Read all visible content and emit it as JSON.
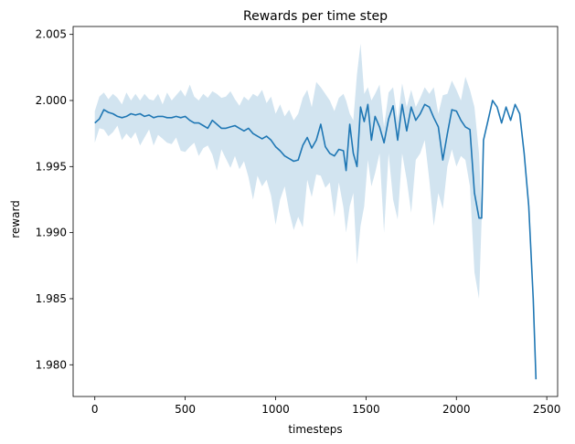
{
  "chart_data": {
    "type": "line",
    "title": "Rewards per time step",
    "xlabel": "timesteps",
    "ylabel": "reward",
    "xlim": [
      -120,
      2560
    ],
    "ylim": [
      1.9776,
      2.0056
    ],
    "xticks": [
      0,
      500,
      1000,
      1500,
      2000,
      2500
    ],
    "xtick_labels": [
      "0",
      "500",
      "1000",
      "1500",
      "2000",
      "2500"
    ],
    "yticks": [
      1.98,
      1.985,
      1.99,
      1.995,
      2.0,
      2.005
    ],
    "ytick_labels": [
      "1.980",
      "1.985",
      "1.990",
      "1.995",
      "2.000",
      "2.005"
    ],
    "grid": false,
    "line_color": "#1f77b4",
    "band_color": "#1f77b4",
    "series": [
      {
        "values": [
          [
            0,
            1.9983
          ],
          [
            25,
            1.9986
          ],
          [
            50,
            1.9993
          ],
          [
            75,
            1.9991
          ],
          [
            100,
            1.999
          ],
          [
            125,
            1.9988
          ],
          [
            150,
            1.9987
          ],
          [
            175,
            1.9988
          ],
          [
            200,
            1.999
          ],
          [
            225,
            1.9989
          ],
          [
            250,
            1.999
          ],
          [
            275,
            1.9988
          ],
          [
            300,
            1.9989
          ],
          [
            325,
            1.9987
          ],
          [
            350,
            1.9988
          ],
          [
            375,
            1.9988
          ],
          [
            400,
            1.9987
          ],
          [
            425,
            1.9987
          ],
          [
            450,
            1.9988
          ],
          [
            475,
            1.9987
          ],
          [
            500,
            1.9988
          ],
          [
            525,
            1.9985
          ],
          [
            550,
            1.9983
          ],
          [
            575,
            1.9983
          ],
          [
            600,
            1.9981
          ],
          [
            625,
            1.9979
          ],
          [
            650,
            1.9985
          ],
          [
            675,
            1.9982
          ],
          [
            700,
            1.9979
          ],
          [
            725,
            1.9979
          ],
          [
            750,
            1.998
          ],
          [
            775,
            1.9981
          ],
          [
            800,
            1.9979
          ],
          [
            825,
            1.9977
          ],
          [
            850,
            1.9979
          ],
          [
            875,
            1.9975
          ],
          [
            900,
            1.9973
          ],
          [
            925,
            1.9971
          ],
          [
            950,
            1.9973
          ],
          [
            975,
            1.997
          ],
          [
            1000,
            1.9965
          ],
          [
            1025,
            1.9962
          ],
          [
            1050,
            1.9958
          ],
          [
            1075,
            1.9956
          ],
          [
            1100,
            1.9954
          ],
          [
            1125,
            1.9955
          ],
          [
            1150,
            1.9966
          ],
          [
            1175,
            1.9972
          ],
          [
            1200,
            1.9964
          ],
          [
            1225,
            1.997
          ],
          [
            1250,
            1.9982
          ],
          [
            1275,
            1.9965
          ],
          [
            1300,
            1.996
          ],
          [
            1325,
            1.9958
          ],
          [
            1350,
            1.9963
          ],
          [
            1375,
            1.9962
          ],
          [
            1390,
            1.9947
          ],
          [
            1410,
            1.9982
          ],
          [
            1430,
            1.996
          ],
          [
            1450,
            1.995
          ],
          [
            1470,
            1.9995
          ],
          [
            1490,
            1.9984
          ],
          [
            1510,
            1.9997
          ],
          [
            1530,
            1.997
          ],
          [
            1550,
            1.9988
          ],
          [
            1575,
            1.998
          ],
          [
            1600,
            1.9968
          ],
          [
            1625,
            1.9986
          ],
          [
            1650,
            1.9996
          ],
          [
            1675,
            1.997
          ],
          [
            1700,
            1.9997
          ],
          [
            1725,
            1.9977
          ],
          [
            1750,
            1.9995
          ],
          [
            1775,
            1.9985
          ],
          [
            1800,
            1.999
          ],
          [
            1825,
            1.9997
          ],
          [
            1850,
            1.9995
          ],
          [
            1875,
            1.9987
          ],
          [
            1900,
            1.998
          ],
          [
            1925,
            1.9955
          ],
          [
            1950,
            1.9975
          ],
          [
            1975,
            1.9993
          ],
          [
            2000,
            1.9992
          ],
          [
            2025,
            1.9985
          ],
          [
            2050,
            1.998
          ],
          [
            2075,
            1.9978
          ],
          [
            2100,
            1.993
          ],
          [
            2125,
            1.9911
          ],
          [
            2140,
            1.9911
          ],
          [
            2150,
            1.997
          ],
          [
            2175,
            1.9985
          ],
          [
            2200,
            2.0
          ],
          [
            2225,
            1.9995
          ],
          [
            2250,
            1.9983
          ],
          [
            2275,
            1.9995
          ],
          [
            2300,
            1.9985
          ],
          [
            2325,
            1.9997
          ],
          [
            2350,
            1.999
          ],
          [
            2375,
            1.996
          ],
          [
            2400,
            1.992
          ],
          [
            2425,
            1.985
          ],
          [
            2440,
            1.9789
          ]
        ],
        "lower": [
          [
            0,
            1.9968
          ],
          [
            25,
            1.9979
          ],
          [
            50,
            1.9978
          ],
          [
            75,
            1.9973
          ],
          [
            100,
            1.9976
          ],
          [
            125,
            1.9981
          ],
          [
            150,
            1.997
          ],
          [
            175,
            1.9975
          ],
          [
            200,
            1.9971
          ],
          [
            225,
            1.9976
          ],
          [
            250,
            1.9966
          ],
          [
            275,
            1.9972
          ],
          [
            300,
            1.9978
          ],
          [
            325,
            1.9966
          ],
          [
            350,
            1.9974
          ],
          [
            375,
            1.9971
          ],
          [
            400,
            1.9968
          ],
          [
            425,
            1.9967
          ],
          [
            450,
            1.9972
          ],
          [
            475,
            1.9962
          ],
          [
            500,
            1.9961
          ],
          [
            525,
            1.9965
          ],
          [
            550,
            1.9968
          ],
          [
            575,
            1.9958
          ],
          [
            600,
            1.9964
          ],
          [
            625,
            1.9966
          ],
          [
            650,
            1.9959
          ],
          [
            675,
            1.9947
          ],
          [
            700,
            1.9963
          ],
          [
            725,
            1.9956
          ],
          [
            750,
            1.9949
          ],
          [
            775,
            1.9958
          ],
          [
            800,
            1.9948
          ],
          [
            825,
            1.9954
          ],
          [
            850,
            1.9942
          ],
          [
            875,
            1.9925
          ],
          [
            900,
            1.9943
          ],
          [
            925,
            1.9935
          ],
          [
            950,
            1.994
          ],
          [
            975,
            1.9928
          ],
          [
            1000,
            1.9906
          ],
          [
            1025,
            1.9925
          ],
          [
            1050,
            1.9935
          ],
          [
            1075,
            1.9916
          ],
          [
            1100,
            1.9902
          ],
          [
            1125,
            1.9912
          ],
          [
            1150,
            1.9904
          ],
          [
            1175,
            1.994
          ],
          [
            1200,
            1.9927
          ],
          [
            1225,
            1.9944
          ],
          [
            1250,
            1.9943
          ],
          [
            1275,
            1.9934
          ],
          [
            1300,
            1.9938
          ],
          [
            1325,
            1.9912
          ],
          [
            1350,
            1.9938
          ],
          [
            1375,
            1.9919
          ],
          [
            1390,
            1.99
          ],
          [
            1410,
            1.992
          ],
          [
            1430,
            1.993
          ],
          [
            1450,
            1.9876
          ],
          [
            1470,
            1.9905
          ],
          [
            1490,
            1.992
          ],
          [
            1510,
            1.9955
          ],
          [
            1530,
            1.9935
          ],
          [
            1550,
            1.9945
          ],
          [
            1575,
            1.996
          ],
          [
            1600,
            1.99
          ],
          [
            1625,
            1.996
          ],
          [
            1650,
            1.9925
          ],
          [
            1675,
            1.991
          ],
          [
            1700,
            1.996
          ],
          [
            1725,
            1.994
          ],
          [
            1750,
            1.9915
          ],
          [
            1775,
            1.9955
          ],
          [
            1800,
            1.996
          ],
          [
            1825,
            1.997
          ],
          [
            1850,
            1.994
          ],
          [
            1875,
            1.9905
          ],
          [
            1900,
            1.993
          ],
          [
            1925,
            1.9918
          ],
          [
            1950,
            1.995
          ],
          [
            1975,
            1.9963
          ],
          [
            2000,
            1.995
          ],
          [
            2025,
            1.9958
          ],
          [
            2050,
            1.9955
          ],
          [
            2075,
            1.9935
          ],
          [
            2100,
            1.987
          ],
          [
            2125,
            1.985
          ],
          [
            2140,
            1.991
          ]
        ],
        "upper": [
          [
            0,
            1.9992
          ],
          [
            25,
            2.0003
          ],
          [
            50,
            2.0006
          ],
          [
            75,
            2.0001
          ],
          [
            100,
            2.0005
          ],
          [
            125,
            2.0002
          ],
          [
            150,
            1.9997
          ],
          [
            175,
            2.0006
          ],
          [
            200,
            2.0
          ],
          [
            225,
            2.0005
          ],
          [
            250,
            2.0
          ],
          [
            275,
            2.0005
          ],
          [
            300,
            2.0001
          ],
          [
            325,
            2.0
          ],
          [
            350,
            2.0005
          ],
          [
            375,
            1.9997
          ],
          [
            400,
            2.0006
          ],
          [
            425,
            2.0
          ],
          [
            450,
            2.0004
          ],
          [
            475,
            2.0008
          ],
          [
            500,
            2.0003
          ],
          [
            525,
            2.0012
          ],
          [
            550,
            2.0003
          ],
          [
            575,
            2.0
          ],
          [
            600,
            2.0005
          ],
          [
            625,
            2.0002
          ],
          [
            650,
            2.0007
          ],
          [
            675,
            2.0005
          ],
          [
            700,
            2.0002
          ],
          [
            725,
            2.0003
          ],
          [
            750,
            2.0007
          ],
          [
            775,
            2.0001
          ],
          [
            800,
            1.9996
          ],
          [
            825,
            2.0003
          ],
          [
            850,
            2.0
          ],
          [
            875,
            2.0005
          ],
          [
            900,
            2.0003
          ],
          [
            925,
            2.0008
          ],
          [
            950,
            1.9998
          ],
          [
            975,
            2.0003
          ],
          [
            1000,
            1.999
          ],
          [
            1025,
            1.9997
          ],
          [
            1050,
            1.9988
          ],
          [
            1075,
            1.9993
          ],
          [
            1100,
            1.9985
          ],
          [
            1125,
            1.999
          ],
          [
            1150,
            2.0002
          ],
          [
            1175,
            2.0008
          ],
          [
            1200,
            1.9995
          ],
          [
            1225,
            2.0014
          ],
          [
            1250,
            2.001
          ],
          [
            1275,
            2.0005
          ],
          [
            1300,
            2.0
          ],
          [
            1325,
            1.9992
          ],
          [
            1350,
            2.0002
          ],
          [
            1375,
            2.0005
          ],
          [
            1390,
            2.0
          ],
          [
            1410,
            1.999
          ],
          [
            1430,
            1.9985
          ],
          [
            1450,
            2.002
          ],
          [
            1470,
            2.0043
          ],
          [
            1490,
            2.0005
          ],
          [
            1510,
            2.001
          ],
          [
            1530,
            2.0
          ],
          [
            1550,
            2.0005
          ],
          [
            1575,
            2.0012
          ],
          [
            1600,
            1.998
          ],
          [
            1625,
            2.0006
          ],
          [
            1650,
            2.001
          ],
          [
            1675,
            1.9985
          ],
          [
            1700,
            2.0013
          ],
          [
            1725,
            1.9995
          ],
          [
            1750,
            2.0008
          ],
          [
            1775,
            1.9995
          ],
          [
            1800,
            2.0002
          ],
          [
            1825,
            2.001
          ],
          [
            1850,
            2.0005
          ],
          [
            1875,
            2.001
          ],
          [
            1900,
            1.999
          ],
          [
            1925,
            2.0004
          ],
          [
            1950,
            2.0005
          ],
          [
            1975,
            2.0015
          ],
          [
            2000,
            2.0008
          ],
          [
            2025,
            2.0
          ],
          [
            2050,
            2.0018
          ],
          [
            2075,
            2.0008
          ],
          [
            2100,
            1.9995
          ],
          [
            2125,
            1.996
          ],
          [
            2140,
            1.9915
          ]
        ]
      }
    ]
  }
}
